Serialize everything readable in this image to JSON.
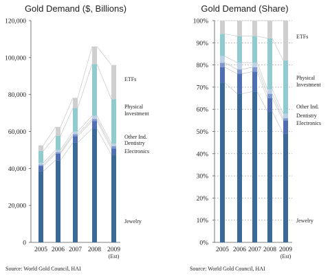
{
  "chart_data": [
    {
      "type": "bar",
      "stacked": true,
      "title": "Gold Demand ($, Billions)",
      "categories": [
        "2005",
        "2006",
        "2007",
        "2008",
        "2009\n(Est)"
      ],
      "ylim": [
        0,
        120000
      ],
      "yticks": [
        "0",
        "20,000",
        "40,000",
        "60,000",
        "80,000",
        "100,000",
        "120,000"
      ],
      "ytick_values": [
        0,
        20000,
        40000,
        60000,
        80000,
        100000,
        120000
      ],
      "series": [
        {
          "name": "Jewelry",
          "color": "#3a6a9a",
          "values": [
            38500,
            44500,
            54000,
            61500,
            47500
          ]
        },
        {
          "name": "Electronics",
          "color": "#4f6fb5",
          "values": [
            2800,
            3500,
            3500,
            4200,
            3200
          ]
        },
        {
          "name": "Dentistry",
          "color": "#7f98d0",
          "values": [
            700,
            800,
            1000,
            1100,
            1300
          ]
        },
        {
          "name": "Other Ind.",
          "color": "#bcd0e6",
          "values": [
            1000,
            1200,
            1500,
            1700,
            1500
          ]
        },
        {
          "name": "Physical Investment",
          "color": "#8fcbcf",
          "values": [
            6500,
            7700,
            12700,
            28000,
            24000
          ]
        },
        {
          "name": "ETFs",
          "color": "#cfcfcf",
          "values": [
            3000,
            4800,
            5500,
            9500,
            18500
          ]
        }
      ],
      "labels": [
        {
          "text": "ETFs",
          "series": "ETFs"
        },
        {
          "text": "Physical",
          "series": "Physical Investment"
        },
        {
          "text": "Investment",
          "series": "Physical Investment"
        },
        {
          "text": "Other Ind.",
          "series": "Other Ind."
        },
        {
          "text": "Dentistry",
          "series": "Dentistry"
        },
        {
          "text": "Electronics",
          "series": "Electronics"
        },
        {
          "text": "Jewelry",
          "series": "Jewelry"
        }
      ]
    },
    {
      "type": "bar",
      "stacked": true,
      "title": "Gold Demand (Share)",
      "categories": [
        "2005",
        "2006",
        "2007",
        "2008",
        "2009\n(Est)"
      ],
      "ylim": [
        0,
        100
      ],
      "yticks": [
        "0%",
        "10%",
        "20%",
        "30%",
        "40%",
        "50%",
        "60%",
        "70%",
        "80%",
        "90%",
        "100%"
      ],
      "ytick_values": [
        0,
        10,
        20,
        30,
        40,
        50,
        60,
        70,
        80,
        90,
        100
      ],
      "series": [
        {
          "name": "Jewelry",
          "color": "#3a6a9a",
          "values": [
            72,
            67,
            68,
            59,
            49
          ]
        },
        {
          "name": "Electronics",
          "color": "#4f6fb5",
          "values": [
            7,
            9,
            9,
            6,
            6
          ]
        },
        {
          "name": "Dentistry",
          "color": "#7f98d0",
          "values": [
            2,
            2,
            2,
            2,
            1
          ]
        },
        {
          "name": "Other Ind.",
          "color": "#bcd0e6",
          "values": [
            3,
            3,
            2,
            2,
            2
          ]
        },
        {
          "name": "Physical Investment",
          "color": "#8fcbcf",
          "values": [
            10,
            12,
            12,
            23,
            24
          ]
        },
        {
          "name": "ETFs",
          "color": "#cfcfcf",
          "values": [
            6,
            7,
            7,
            8,
            18
          ]
        }
      ],
      "labels": [
        {
          "text": "ETFs",
          "series": "ETFs"
        },
        {
          "text": "Physical",
          "series": "Physical Investment"
        },
        {
          "text": "Investment",
          "series": "Physical Investment"
        },
        {
          "text": "Other Ind.",
          "series": "Other Ind."
        },
        {
          "text": "Dentistry",
          "series": "Dentistry"
        },
        {
          "text": "Electronics",
          "series": "Electronics"
        },
        {
          "text": "Jewelry",
          "series": "Jewelry"
        }
      ]
    }
  ],
  "source_text": "Source: World Gold Council, HAI"
}
